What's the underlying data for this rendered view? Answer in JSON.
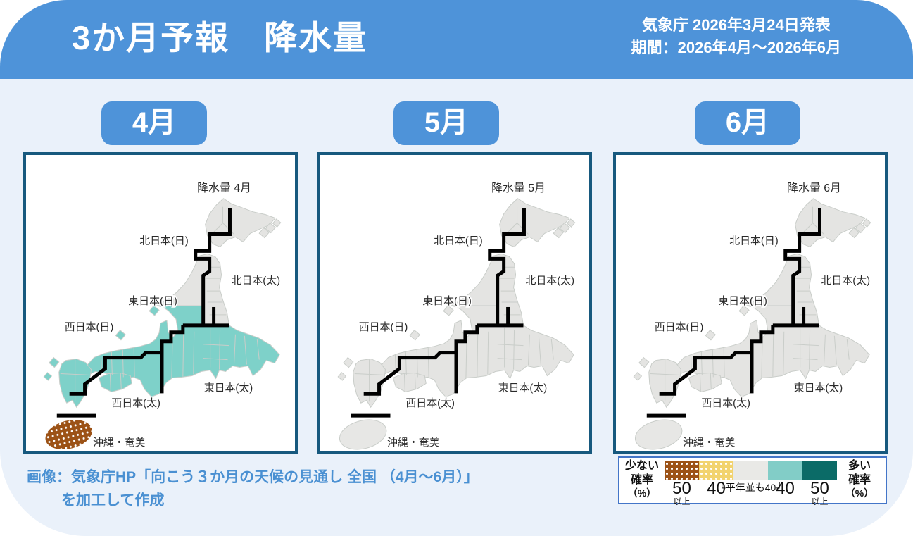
{
  "header": {
    "title": "3か月予報　降水量",
    "announcement": "気象庁 2026年3月24日発表",
    "period": "期間：2026年4月〜2026年6月"
  },
  "months": [
    {
      "badge": "4月",
      "map_title": "降水量 4月",
      "fills": {
        "hokkaido_tohoku": "normal",
        "central_west": "wet-40",
        "okinawa": "dry-50"
      }
    },
    {
      "badge": "5月",
      "map_title": "降水量 5月",
      "fills": {
        "hokkaido_tohoku": "normal",
        "central_west": "normal",
        "okinawa": "normal"
      }
    },
    {
      "badge": "6月",
      "map_title": "降水量 6月",
      "fills": {
        "hokkaido_tohoku": "normal",
        "central_west": "normal",
        "okinawa": "normal"
      }
    }
  ],
  "map_labels": {
    "north_sea": "北日本(日)",
    "north_pacific": "北日本(太)",
    "east_sea": "東日本(日)",
    "east_pacific": "東日本(太)",
    "west_sea": "西日本(日)",
    "west_pacific": "西日本(太)",
    "okinawa": "沖縄・奄美"
  },
  "legend": {
    "left_label_lines": [
      "少ない",
      "確率",
      "（%）"
    ],
    "right_label_lines": [
      "多い",
      "確率",
      "（%）"
    ],
    "swatches": [
      {
        "name": "dry-50",
        "color": "#9c5216",
        "dotted": true,
        "value": "50",
        "sub": "以上"
      },
      {
        "name": "dry-40",
        "color": "#f2d36e",
        "dotted": true,
        "value": "40",
        "sub": ""
      },
      {
        "name": "normal",
        "color": "#e9e9e6",
        "dotted": false,
        "value": "",
        "sub": ""
      },
      {
        "name": "wet-40",
        "color": "#82cdc7",
        "dotted": false,
        "value": "40",
        "sub": ""
      },
      {
        "name": "wet-50",
        "color": "#0b6b67",
        "dotted": false,
        "value": "50",
        "sub": "以上"
      }
    ],
    "bracket_text": "└平年並も40┘"
  },
  "caption": {
    "line1": "画像：気象庁HP「向こう３か月の天候の見通し 全国 （4月〜6月）」",
    "line2": "を加工して作成"
  },
  "colors": {
    "header_blue": "#4e93d9",
    "page_bg": "#eaf1fa",
    "panel_border": "#17597e",
    "land": "#e4e4e2",
    "land_light": "#e7e7e5",
    "land_stroke": "#c9cdc9",
    "wet40": "#7ed1c9",
    "wet50": "#0b6b67",
    "dry50": "#9c5216",
    "dry40": "#f2d36e",
    "boundary_black": "#000000",
    "legend_border": "#4375c8",
    "caption_blue": "#4a90d2"
  }
}
